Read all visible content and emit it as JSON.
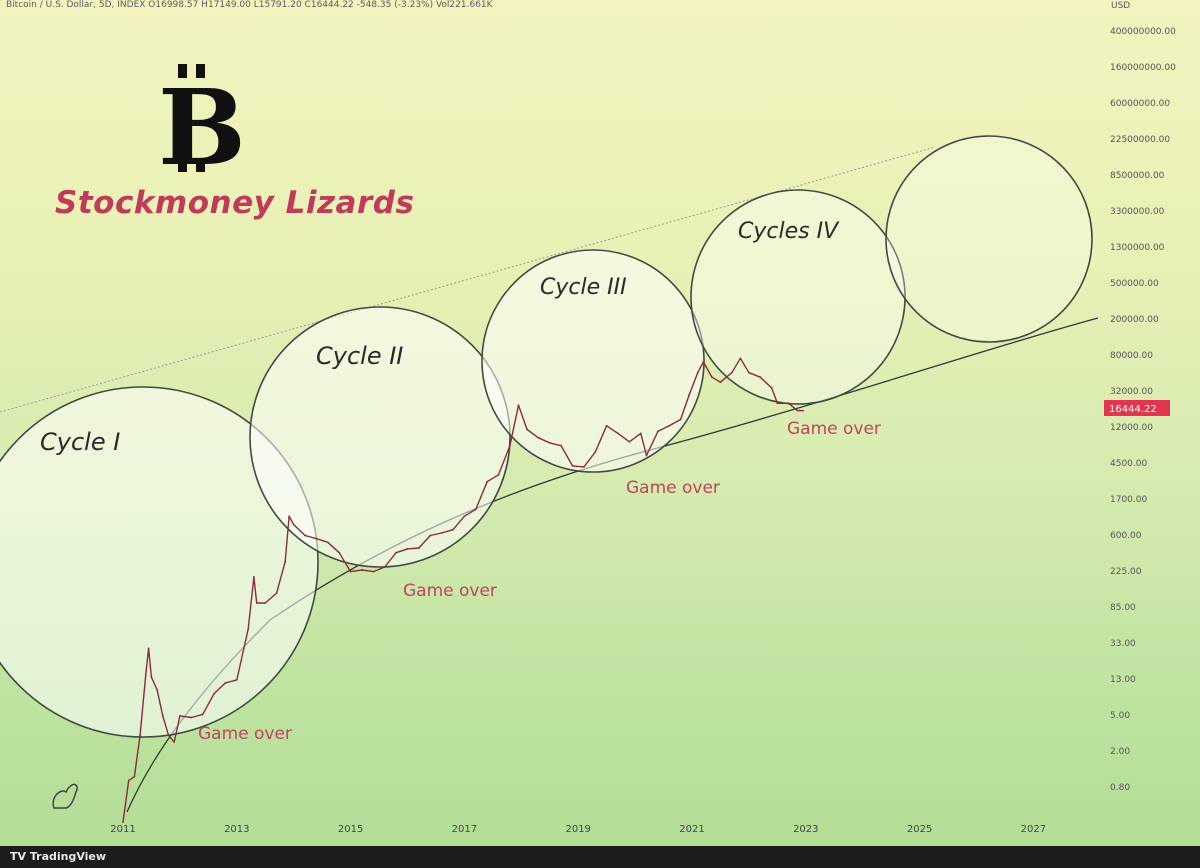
{
  "header": {
    "text": "Bitcoin / U.S. Dollar, 5D, INDEX  O16998.57  H17149.00  L15791.20  C16444.22  -548.35 (-3.23%)  Vol221.661K"
  },
  "brand": {
    "name": "Stockmoney Lizards",
    "logo_glyph": "B"
  },
  "footer": {
    "text": "TV TradingView"
  },
  "chart_data": {
    "type": "line",
    "title": "",
    "scale": "log",
    "currency_label": "USD",
    "current_price_label": "16444.22",
    "current_price": 16444.22,
    "x_ticks": [
      "2011",
      "2013",
      "2015",
      "2017",
      "2019",
      "2021",
      "2023",
      "2025",
      "2027"
    ],
    "y_ticks": [
      "400000000.00",
      "160000000.00",
      "60000000.00",
      "22500000.00",
      "8500000.00",
      "3300000.00",
      "1300000.00",
      "500000.00",
      "200000.00",
      "80000.00",
      "32000.00",
      "12000.00",
      "4500.00",
      "1700.00",
      "600.00",
      "225.00",
      "85.00",
      "33.00",
      "13.00",
      "5.00",
      "2.00",
      "0.80"
    ],
    "ylim": [
      0.5,
      600000000
    ],
    "xlim": [
      2010.7,
      2028.0
    ],
    "cycle_labels": [
      "Cycle I",
      "Cycle II",
      "Cycle III",
      "Cycles IV"
    ],
    "annotations": [
      "Game over",
      "Game over",
      "Game over",
      "Game over"
    ],
    "series": [
      {
        "values": [
          [
            2011.0,
            0.3
          ],
          [
            2011.1,
            0.9
          ],
          [
            2011.2,
            1.0
          ],
          [
            2011.3,
            3
          ],
          [
            2011.4,
            15
          ],
          [
            2011.45,
            30
          ],
          [
            2011.5,
            14
          ],
          [
            2011.6,
            10
          ],
          [
            2011.7,
            5
          ],
          [
            2011.8,
            3
          ],
          [
            2011.9,
            2.5
          ],
          [
            2012.0,
            5
          ],
          [
            2012.2,
            4.8
          ],
          [
            2012.4,
            5.2
          ],
          [
            2012.6,
            9
          ],
          [
            2012.8,
            12
          ],
          [
            2013.0,
            13
          ],
          [
            2013.2,
            50
          ],
          [
            2013.3,
            200
          ],
          [
            2013.35,
            100
          ],
          [
            2013.5,
            100
          ],
          [
            2013.7,
            130
          ],
          [
            2013.85,
            300
          ],
          [
            2013.92,
            1000
          ],
          [
            2014.0,
            800
          ],
          [
            2014.2,
            600
          ],
          [
            2014.4,
            550
          ],
          [
            2014.6,
            500
          ],
          [
            2014.8,
            380
          ],
          [
            2015.0,
            230
          ],
          [
            2015.2,
            240
          ],
          [
            2015.4,
            230
          ],
          [
            2015.6,
            260
          ],
          [
            2015.8,
            380
          ],
          [
            2016.0,
            420
          ],
          [
            2016.2,
            430
          ],
          [
            2016.4,
            600
          ],
          [
            2016.6,
            640
          ],
          [
            2016.8,
            700
          ],
          [
            2017.0,
            1000
          ],
          [
            2017.2,
            1200
          ],
          [
            2017.4,
            2500
          ],
          [
            2017.6,
            3000
          ],
          [
            2017.8,
            6500
          ],
          [
            2017.95,
            19000
          ],
          [
            2018.1,
            10000
          ],
          [
            2018.3,
            8000
          ],
          [
            2018.5,
            7000
          ],
          [
            2018.7,
            6500
          ],
          [
            2018.9,
            3800
          ],
          [
            2019.1,
            3700
          ],
          [
            2019.3,
            5500
          ],
          [
            2019.5,
            11000
          ],
          [
            2019.7,
            9000
          ],
          [
            2019.9,
            7200
          ],
          [
            2020.1,
            9000
          ],
          [
            2020.2,
            5000
          ],
          [
            2020.4,
            9500
          ],
          [
            2020.6,
            11000
          ],
          [
            2020.8,
            13000
          ],
          [
            2020.95,
            25000
          ],
          [
            2021.1,
            45000
          ],
          [
            2021.2,
            60000
          ],
          [
            2021.35,
            40000
          ],
          [
            2021.5,
            35000
          ],
          [
            2021.7,
            45000
          ],
          [
            2021.85,
            66000
          ],
          [
            2022.0,
            45000
          ],
          [
            2022.2,
            40000
          ],
          [
            2022.4,
            30000
          ],
          [
            2022.5,
            20000
          ],
          [
            2022.7,
            20000
          ],
          [
            2022.85,
            16500
          ],
          [
            2022.95,
            16444
          ]
        ]
      }
    ]
  }
}
